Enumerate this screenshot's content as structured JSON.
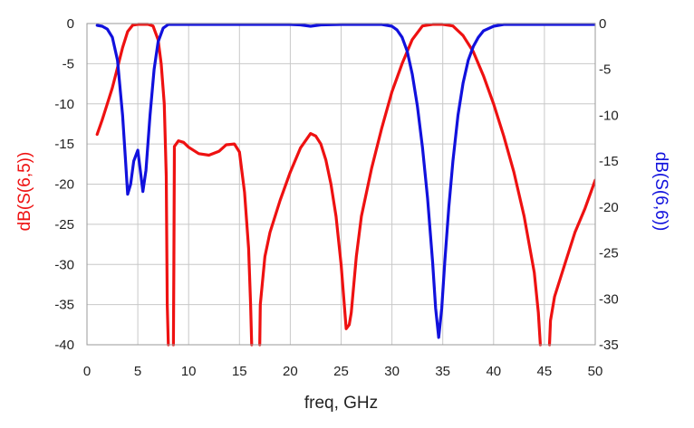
{
  "chart_data": {
    "type": "line",
    "title": "",
    "xlabel": "freq, GHz",
    "ylabel_left": "dB(S(6,5))",
    "ylabel_right": "dB(S(6,6))",
    "xlim": [
      0,
      50
    ],
    "ylim_left": [
      -40,
      0
    ],
    "ylim_right": [
      -35,
      0
    ],
    "x_ticks": [
      0,
      5,
      10,
      15,
      20,
      25,
      30,
      35,
      40,
      45,
      50
    ],
    "y_ticks_left": [
      0,
      -5,
      -10,
      -15,
      -20,
      -25,
      -30,
      -35,
      -40
    ],
    "y_ticks_right": [
      0,
      -5,
      -10,
      -15,
      -20,
      -25,
      -30,
      -35
    ],
    "grid": true,
    "colors": {
      "left_series": "#ee1111",
      "right_series": "#1111dd",
      "grid": "#c8c8c8"
    },
    "series": [
      {
        "name": "dB(S(6,5))",
        "axis": "left",
        "segments": [
          [
            [
              1.0,
              -13.8
            ],
            [
              1.5,
              -12.0
            ],
            [
              2.0,
              -10.0
            ],
            [
              2.5,
              -8.0
            ],
            [
              3.0,
              -5.5
            ],
            [
              3.5,
              -3.0
            ],
            [
              4.0,
              -1.0
            ],
            [
              4.5,
              -0.2
            ],
            [
              5.0,
              -0.1
            ],
            [
              6.0,
              -0.1
            ],
            [
              6.5,
              -0.3
            ],
            [
              7.0,
              -2.0
            ],
            [
              7.3,
              -5.0
            ],
            [
              7.6,
              -10.0
            ],
            [
              7.8,
              -19.0
            ],
            [
              7.9,
              -35.0
            ],
            [
              8.0,
              -40.0
            ]
          ],
          [
            [
              8.5,
              -40.0
            ],
            [
              8.55,
              -30.0
            ],
            [
              8.6,
              -15.3
            ],
            [
              9.0,
              -14.6
            ],
            [
              9.5,
              -14.8
            ],
            [
              10.0,
              -15.4
            ],
            [
              11.0,
              -16.2
            ],
            [
              12.0,
              -16.4
            ],
            [
              13.0,
              -15.9
            ],
            [
              13.7,
              -15.1
            ],
            [
              14.5,
              -15.0
            ],
            [
              15.0,
              -16.0
            ],
            [
              15.5,
              -21.0
            ],
            [
              15.9,
              -28.0
            ],
            [
              16.1,
              -35.0
            ],
            [
              16.2,
              -40.0
            ]
          ],
          [
            [
              17.0,
              -40.0
            ],
            [
              17.05,
              -35.0
            ],
            [
              17.5,
              -29.0
            ],
            [
              18.0,
              -26.0
            ],
            [
              19.0,
              -22.0
            ],
            [
              20.0,
              -18.5
            ],
            [
              21.0,
              -15.5
            ],
            [
              22.0,
              -13.7
            ],
            [
              22.5,
              -14.0
            ],
            [
              23.0,
              -15.0
            ],
            [
              23.5,
              -17.0
            ],
            [
              24.0,
              -20.0
            ],
            [
              24.5,
              -24.0
            ],
            [
              25.0,
              -30.0
            ],
            [
              25.5,
              -38.0
            ],
            [
              25.8,
              -37.5
            ],
            [
              26.0,
              -36.0
            ],
            [
              26.5,
              -29.0
            ],
            [
              27.0,
              -24.0
            ],
            [
              28.0,
              -18.0
            ],
            [
              29.0,
              -13.0
            ],
            [
              30.0,
              -8.5
            ],
            [
              31.0,
              -5.0
            ],
            [
              32.0,
              -2.0
            ],
            [
              33.0,
              -0.3
            ],
            [
              34.0,
              -0.1
            ],
            [
              35.0,
              -0.1
            ],
            [
              36.0,
              -0.3
            ],
            [
              37.0,
              -1.5
            ],
            [
              38.0,
              -3.5
            ],
            [
              39.0,
              -6.5
            ],
            [
              40.0,
              -10.0
            ],
            [
              41.0,
              -14.0
            ],
            [
              42.0,
              -18.5
            ],
            [
              43.0,
              -24.0
            ],
            [
              44.0,
              -31.0
            ],
            [
              44.4,
              -36.0
            ],
            [
              44.6,
              -40.0
            ]
          ],
          [
            [
              45.5,
              -40.0
            ],
            [
              45.6,
              -37.0
            ],
            [
              46.0,
              -34.0
            ],
            [
              47.0,
              -30.0
            ],
            [
              48.0,
              -26.0
            ],
            [
              49.0,
              -23.0
            ],
            [
              50.0,
              -19.5
            ]
          ]
        ]
      },
      {
        "name": "dB(S(6,6))",
        "axis": "right",
        "segments": [
          [
            [
              1.0,
              -0.2
            ],
            [
              1.5,
              -0.3
            ],
            [
              2.0,
              -0.6
            ],
            [
              2.5,
              -1.5
            ],
            [
              3.0,
              -4.0
            ],
            [
              3.5,
              -10.0
            ],
            [
              3.8,
              -15.0
            ],
            [
              4.0,
              -18.6
            ],
            [
              4.3,
              -17.5
            ],
            [
              4.6,
              -15.0
            ],
            [
              5.0,
              -13.8
            ],
            [
              5.3,
              -16.5
            ],
            [
              5.5,
              -18.3
            ],
            [
              5.8,
              -16.0
            ],
            [
              6.2,
              -10.0
            ],
            [
              6.6,
              -5.0
            ],
            [
              7.0,
              -2.0
            ],
            [
              7.5,
              -0.5
            ],
            [
              8.0,
              -0.1
            ],
            [
              15.0,
              -0.1
            ],
            [
              20.0,
              -0.1
            ],
            [
              21.0,
              -0.15
            ],
            [
              22.0,
              -0.3
            ],
            [
              23.0,
              -0.15
            ],
            [
              25.0,
              -0.1
            ],
            [
              29.0,
              -0.1
            ],
            [
              30.0,
              -0.3
            ],
            [
              30.5,
              -0.7
            ],
            [
              31.0,
              -1.5
            ],
            [
              31.5,
              -3.0
            ],
            [
              32.0,
              -5.5
            ],
            [
              32.5,
              -9.0
            ],
            [
              33.0,
              -13.5
            ],
            [
              33.5,
              -19.0
            ],
            [
              34.0,
              -26.0
            ],
            [
              34.3,
              -31.0
            ],
            [
              34.6,
              -34.2
            ],
            [
              34.9,
              -31.0
            ],
            [
              35.2,
              -26.0
            ],
            [
              35.6,
              -20.0
            ],
            [
              36.0,
              -15.0
            ],
            [
              36.5,
              -10.0
            ],
            [
              37.0,
              -6.5
            ],
            [
              37.5,
              -4.0
            ],
            [
              38.0,
              -2.5
            ],
            [
              38.5,
              -1.5
            ],
            [
              39.0,
              -0.8
            ],
            [
              40.0,
              -0.3
            ],
            [
              41.0,
              -0.1
            ],
            [
              50.0,
              -0.1
            ]
          ]
        ]
      }
    ]
  }
}
